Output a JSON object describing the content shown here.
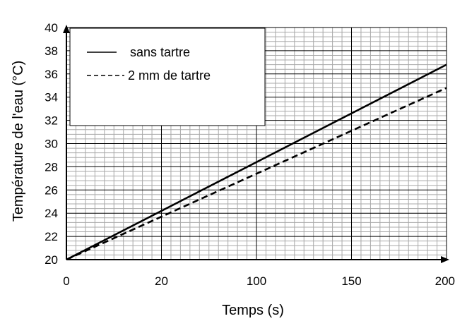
{
  "chart_data": {
    "type": "line",
    "title": "",
    "xlabel": "Temps (s)",
    "ylabel": "Température de l'eau (°C)",
    "xlim": [
      0,
      200
    ],
    "ylim": [
      20,
      40
    ],
    "x_ticks": [
      "0",
      "20",
      "100",
      "150",
      "200"
    ],
    "y_ticks": [
      "20",
      "22",
      "24",
      "26",
      "28",
      "30",
      "32",
      "34",
      "36",
      "38",
      "40"
    ],
    "grid": true,
    "legend_position": "top-left",
    "series": [
      {
        "name": "sans tartre",
        "style": "solid",
        "color": "#000000",
        "x": [
          0,
          200
        ],
        "y": [
          20,
          36.8
        ]
      },
      {
        "name": "2 mm de tartre",
        "style": "dashed",
        "color": "#000000",
        "x": [
          0,
          200
        ],
        "y": [
          20,
          34.8
        ]
      }
    ]
  }
}
